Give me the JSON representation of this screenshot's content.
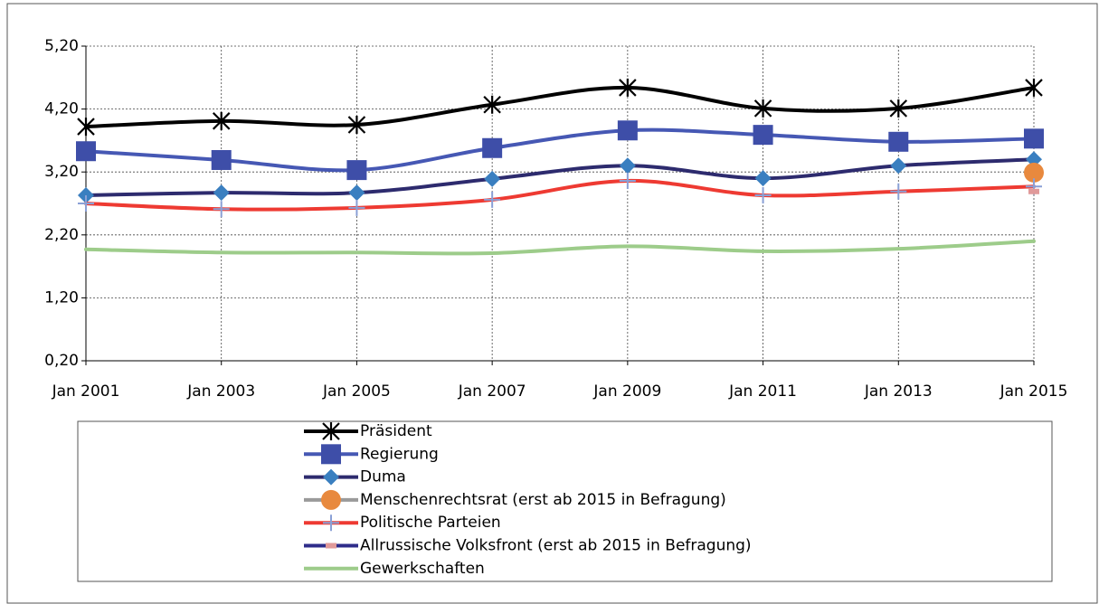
{
  "chart_data": {
    "type": "line",
    "categories": [
      "Jan 2001",
      "Jan 2003",
      "Jan 2005",
      "Jan 2007",
      "Jan 2009",
      "Jan 2011",
      "Jan 2013",
      "Jan 2015"
    ],
    "series": [
      {
        "name": "Präsident",
        "color": "#000000",
        "marker": "star",
        "marker_color": "#000000",
        "values": [
          3.92,
          4.01,
          3.95,
          4.27,
          4.54,
          4.21,
          4.21,
          4.54
        ]
      },
      {
        "name": "Regierung",
        "color": "#4658b4",
        "marker": "square",
        "marker_color": "#3e4ea8",
        "values": [
          3.53,
          3.39,
          3.23,
          3.58,
          3.86,
          3.79,
          3.68,
          3.73
        ]
      },
      {
        "name": "Duma",
        "color": "#2d2b6e",
        "marker": "diamond",
        "marker_color": "#3a7fc0",
        "values": [
          2.83,
          2.87,
          2.87,
          3.09,
          3.3,
          3.1,
          3.3,
          3.4
        ]
      },
      {
        "name": "Menschenrechtsrat (erst ab 2015 in Befragung)",
        "color": "#9a9a9a",
        "marker": "circle",
        "marker_color": "#e8893e",
        "values": [
          null,
          null,
          null,
          null,
          null,
          null,
          null,
          3.19
        ]
      },
      {
        "name": "Politische Parteien",
        "color": "#ee3a32",
        "marker": "plus",
        "marker_color": "#8aa0d6",
        "values": [
          2.7,
          2.61,
          2.63,
          2.76,
          3.06,
          2.83,
          2.89,
          2.97
        ]
      },
      {
        "name": "Allrussische Volksfront (erst ab 2015 in Befragung)",
        "color": "#2e2c8a",
        "marker": "dash",
        "marker_color": "#e09a9a",
        "values": [
          null,
          null,
          null,
          null,
          null,
          null,
          null,
          2.89
        ]
      },
      {
        "name": "Gewerkschaften",
        "color": "#9dcc8a",
        "marker": "none",
        "marker_color": "#9dcc8a",
        "values": [
          1.97,
          1.92,
          1.92,
          1.91,
          2.02,
          1.94,
          1.98,
          2.1
        ]
      }
    ],
    "ylim": [
      0.2,
      5.2
    ],
    "yticks": [
      {
        "value": 0.2,
        "label": "0,20"
      },
      {
        "value": 1.2,
        "label": "1,20"
      },
      {
        "value": 2.2,
        "label": "2,20"
      },
      {
        "value": 3.2,
        "label": "3,20"
      },
      {
        "value": 4.2,
        "label": "4,20"
      },
      {
        "value": 5.2,
        "label": "5,20"
      }
    ],
    "grid": true,
    "legend": "bottom"
  }
}
